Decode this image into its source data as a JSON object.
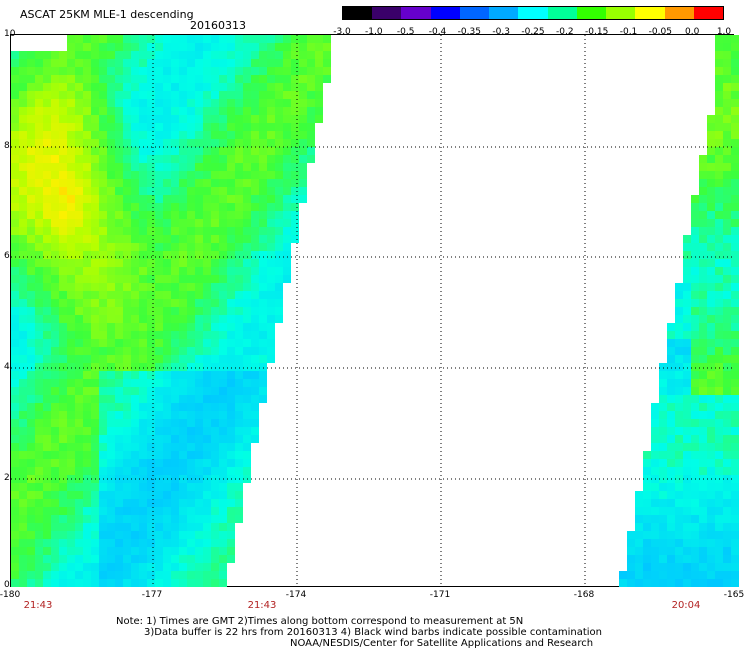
{
  "title": "ASCAT 25KM MLE-1 descending",
  "date": "20160313",
  "colorbar": {
    "labels": [
      "-3.0",
      "-1.0",
      "-0.5",
      "-0.4",
      "-0.35",
      "-0.3",
      "-0.25",
      "-0.2",
      "-0.15",
      "-0.1",
      "-0.05",
      "0.0",
      "1.0"
    ],
    "colors": [
      "#000000",
      "#3a006a",
      "#6600cc",
      "#0000ff",
      "#0066ff",
      "#00aaff",
      "#00ffff",
      "#00ff99",
      "#33ff00",
      "#99ff00",
      "#ffff00",
      "#ff9900",
      "#ff0000"
    ]
  },
  "axes": {
    "y_labels": [
      "10",
      "8",
      "6",
      "4",
      "2",
      "0"
    ],
    "x_labels": [
      "-180",
      "-177",
      "-174",
      "-171",
      "-168",
      "-165"
    ]
  },
  "times": [
    "21:43",
    "21:43",
    "20:04"
  ],
  "notes": {
    "line1": "Note: 1) Times are GMT 2)Times along bottom correspond to measurement at 5N",
    "line2": "3)Data buffer is 22 hrs from 20160313 4) Black wind barbs indicate possible contamination",
    "line3": "NOAA/NESDIS/Center for Satellite Applications and Research"
  }
}
